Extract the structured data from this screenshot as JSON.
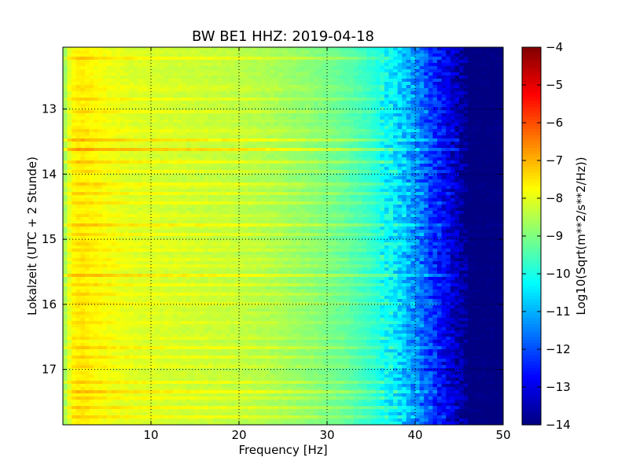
{
  "chart_data": {
    "type": "heatmap",
    "title": "BW BE1 HHZ: 2019-04-18",
    "xlabel": "Frequency [Hz]",
    "ylabel": "Lokalzeit (UTC + 2 Stunde)",
    "xlim": [
      0,
      50
    ],
    "ylim": [
      12.05,
      17.85
    ],
    "y_inverted": true,
    "x_ticks": [
      10,
      20,
      30,
      40,
      50
    ],
    "y_ticks": [
      13,
      14,
      15,
      16,
      17
    ],
    "grid": true,
    "colormap": "jet",
    "colorbar": {
      "label": "Log10(Sqrt(m**2/s**2/Hz))",
      "range": [
        -14,
        -4
      ],
      "ticks": [
        -4,
        -5,
        -6,
        -7,
        -8,
        -9,
        -10,
        -11,
        -12,
        -13,
        -14
      ]
    },
    "profile": {
      "frequency_hz": [
        0,
        0.5,
        1,
        2,
        3,
        5,
        8,
        12,
        16,
        20,
        24,
        28,
        32,
        35,
        38,
        41,
        43,
        45,
        46,
        50
      ],
      "log10_psd": [
        -9.0,
        -8.3,
        -7.8,
        -7.6,
        -7.7,
        -7.9,
        -8.1,
        -8.2,
        -8.3,
        -8.4,
        -8.6,
        -8.9,
        -9.3,
        -9.8,
        -10.6,
        -11.8,
        -12.8,
        -13.6,
        -14.0,
        -14.0
      ]
    },
    "bright_bands": [
      {
        "time": 12.22,
        "strength": 0.5
      },
      {
        "time": 12.68,
        "strength": 0.6
      },
      {
        "time": 12.85,
        "strength": 0.4
      },
      {
        "time": 13.05,
        "strength": 0.5
      },
      {
        "time": 13.35,
        "strength": 0.6
      },
      {
        "time": 13.47,
        "strength": 0.9
      },
      {
        "time": 13.62,
        "strength": 1.0
      },
      {
        "time": 13.8,
        "strength": 0.8
      },
      {
        "time": 13.95,
        "strength": 0.5
      },
      {
        "time": 14.17,
        "strength": 0.8
      },
      {
        "time": 14.3,
        "strength": 0.4
      },
      {
        "time": 14.45,
        "strength": 0.6
      },
      {
        "time": 14.62,
        "strength": 0.5
      },
      {
        "time": 14.77,
        "strength": 0.8
      },
      {
        "time": 14.92,
        "strength": 0.4
      },
      {
        "time": 15.05,
        "strength": 0.5
      },
      {
        "time": 15.15,
        "strength": 0.7
      },
      {
        "time": 15.3,
        "strength": 0.5
      },
      {
        "time": 15.42,
        "strength": 0.4
      },
      {
        "time": 15.55,
        "strength": 0.9
      },
      {
        "time": 15.7,
        "strength": 0.5
      },
      {
        "time": 15.85,
        "strength": 0.4
      },
      {
        "time": 16.0,
        "strength": 0.5
      },
      {
        "time": 16.15,
        "strength": 0.4
      },
      {
        "time": 16.3,
        "strength": 0.6
      },
      {
        "time": 16.5,
        "strength": 0.5
      },
      {
        "time": 16.65,
        "strength": 0.9
      },
      {
        "time": 16.8,
        "strength": 0.5
      },
      {
        "time": 16.95,
        "strength": 0.4
      },
      {
        "time": 17.2,
        "strength": 0.5
      },
      {
        "time": 17.33,
        "strength": 0.9
      },
      {
        "time": 17.45,
        "strength": 0.5
      },
      {
        "time": 17.58,
        "strength": 0.6
      },
      {
        "time": 17.72,
        "strength": 0.7
      }
    ]
  }
}
